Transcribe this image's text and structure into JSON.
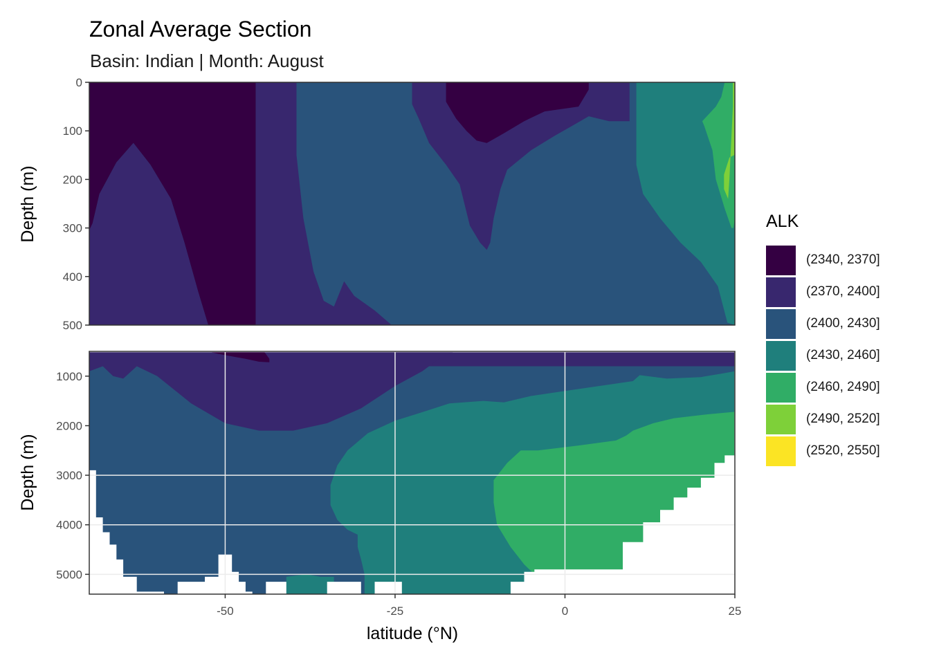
{
  "title": "Zonal Average Section",
  "subtitle": "Basin: Indian | Month: August",
  "chart_data": {
    "type": "filled_contour",
    "title": "Zonal Average Section",
    "subtitle": "Basin: Indian | Month: August",
    "xlabel": "latitude (°N)",
    "ylabel": "Depth (m)",
    "xlim": [
      -70,
      25
    ],
    "x_ticks": [
      -50,
      -25,
      0,
      25
    ],
    "grid": true,
    "legend_position": "right",
    "panels": [
      {
        "name": "upper",
        "ylim": [
          500,
          0
        ],
        "y_ticks": [
          0,
          100,
          200,
          300,
          400,
          500
        ]
      },
      {
        "name": "lower",
        "ylim": [
          5400,
          500
        ],
        "y_ticks": [
          1000,
          2000,
          3000,
          4000,
          5000
        ]
      }
    ],
    "legend": {
      "title": "ALK",
      "entries": [
        {
          "label": "(2340, 2370]",
          "color": "#340042"
        },
        {
          "label": "(2370, 2400]",
          "color": "#38276e"
        },
        {
          "label": "(2400, 2430]",
          "color": "#29537b"
        },
        {
          "label": "(2430, 2460]",
          "color": "#1f7f7c"
        },
        {
          "label": "(2460, 2490]",
          "color": "#30ad66"
        },
        {
          "label": "(2490, 2520]",
          "color": "#7ed039"
        },
        {
          "label": "(2520, 2550]",
          "color": "#fbe424"
        }
      ]
    },
    "bands": {
      "upper": [
        {
          "level": 2,
          "points": [
            [
              -70,
              0
            ],
            [
              25,
              0
            ],
            [
              25,
              500
            ],
            [
              -70,
              500
            ]
          ]
        },
        {
          "level": 0,
          "points": [
            [
              -70,
              0
            ],
            [
              -45.5,
              0
            ],
            [
              -45.5,
              500
            ],
            [
              -52.5,
              500
            ],
            [
              -54,
              430
            ],
            [
              -56,
              330
            ],
            [
              -58,
              240
            ],
            [
              -61,
              170
            ],
            [
              -63.5,
              125
            ],
            [
              -66,
              165
            ],
            [
              -68.5,
              230
            ],
            [
              -69.5,
              290
            ],
            [
              -70,
              305
            ]
          ]
        },
        {
          "level": 1,
          "points": [
            [
              -70,
              305
            ],
            [
              -69.5,
              290
            ],
            [
              -68.5,
              230
            ],
            [
              -66,
              165
            ],
            [
              -63.5,
              125
            ],
            [
              -61,
              170
            ],
            [
              -58,
              240
            ],
            [
              -56,
              330
            ],
            [
              -54,
              430
            ],
            [
              -52.5,
              500
            ],
            [
              -70,
              500
            ]
          ]
        },
        {
          "level": 1,
          "points": [
            [
              -45.5,
              0
            ],
            [
              -39.5,
              0
            ],
            [
              -39.5,
              150
            ],
            [
              -38.5,
              280
            ],
            [
              -37,
              390
            ],
            [
              -35.5,
              450
            ],
            [
              -34,
              462
            ],
            [
              -32.5,
              410
            ],
            [
              -31,
              440
            ],
            [
              -28,
              470
            ],
            [
              -25.5,
              500
            ],
            [
              -45.5,
              500
            ]
          ]
        },
        {
          "level": 1,
          "points": [
            [
              -22.5,
              0
            ],
            [
              9.5,
              0
            ],
            [
              9.5,
              80
            ],
            [
              6.5,
              80
            ],
            [
              3.5,
              70
            ],
            [
              1,
              90
            ],
            [
              -1.5,
              110
            ],
            [
              -5,
              140
            ],
            [
              -8.5,
              180
            ],
            [
              -9.5,
              220
            ],
            [
              -10.5,
              280
            ],
            [
              -11,
              330
            ],
            [
              -11.5,
              345
            ],
            [
              -12.5,
              330
            ],
            [
              -14,
              295
            ],
            [
              -15.5,
              210
            ],
            [
              -17.5,
              170
            ],
            [
              -20,
              125
            ],
            [
              -21.5,
              75
            ],
            [
              -22.5,
              45
            ]
          ]
        },
        {
          "level": 0,
          "points": [
            [
              -17.5,
              0
            ],
            [
              3.5,
              0
            ],
            [
              3.5,
              15
            ],
            [
              2,
              50
            ],
            [
              -3,
              60
            ],
            [
              -6,
              80
            ],
            [
              -9,
              105
            ],
            [
              -11.5,
              125
            ],
            [
              -13,
              120
            ],
            [
              -14.5,
              100
            ],
            [
              -16,
              75
            ],
            [
              -17.5,
              40
            ]
          ]
        },
        {
          "level": 3,
          "points": [
            [
              10.5,
              0
            ],
            [
              25,
              0
            ],
            [
              25,
              500
            ],
            [
              23.9,
              495
            ],
            [
              22.5,
              420
            ],
            [
              20,
              370
            ],
            [
              17,
              330
            ],
            [
              14,
              280
            ],
            [
              11.5,
              230
            ],
            [
              10.5,
              170
            ]
          ]
        },
        {
          "level": 4,
          "points": [
            [
              23.5,
              0
            ],
            [
              25,
              0
            ],
            [
              25,
              280
            ],
            [
              24.8,
              300
            ],
            [
              24.5,
              300
            ],
            [
              23.5,
              260
            ],
            [
              22.2,
              200
            ],
            [
              21.7,
              140
            ],
            [
              20.5,
              90
            ],
            [
              20.2,
              80
            ],
            [
              22.2,
              50
            ],
            [
              23,
              30
            ]
          ]
        },
        {
          "level": 5,
          "points": [
            [
              24.7,
              0
            ],
            [
              25,
              0
            ],
            [
              25,
              150
            ],
            [
              24.9,
              150
            ],
            [
              24.2,
              155
            ],
            [
              23.4,
              190
            ],
            [
              23.4,
              220
            ],
            [
              24.0,
              240
            ],
            [
              24.2,
              200
            ],
            [
              24.6,
              80
            ],
            [
              24.7,
              50
            ]
          ]
        }
      ],
      "lower": [
        {
          "level": 1,
          "points": [
            [
              -70,
              520
            ],
            [
              25,
              520
            ],
            [
              25,
              800
            ],
            [
              -70,
              800
            ]
          ]
        },
        {
          "level": 2,
          "points": [
            [
              -70,
              800
            ],
            [
              25,
              800
            ],
            [
              25,
              5400
            ],
            [
              -70,
              5400
            ]
          ]
        },
        {
          "level": 1,
          "points": [
            [
              -70,
              520
            ],
            [
              -16.5,
              520
            ],
            [
              -18,
              600
            ],
            [
              -21,
              900
            ],
            [
              -25,
              1200
            ],
            [
              -30,
              1650
            ],
            [
              -35,
              1950
            ],
            [
              -40,
              2100
            ],
            [
              -45,
              2100
            ],
            [
              -50,
              1950
            ],
            [
              -55,
              1550
            ],
            [
              -60,
              1000
            ],
            [
              -63,
              800
            ],
            [
              -65,
              1050
            ],
            [
              -66.5,
              1000
            ],
            [
              -68,
              800
            ],
            [
              -70,
              900
            ]
          ]
        },
        {
          "level": 0,
          "points": [
            [
              -52,
              520
            ],
            [
              -44.2,
              520
            ],
            [
              -43.5,
              650
            ],
            [
              -43.5,
              720
            ],
            [
              -45,
              710
            ],
            [
              -47,
              650
            ],
            [
              -49,
              600
            ],
            [
              -51,
              550
            ]
          ]
        },
        {
          "level": 3,
          "points": [
            [
              25,
              900
            ],
            [
              23,
              950
            ],
            [
              20,
              1020
            ],
            [
              15,
              1050
            ],
            [
              11,
              980
            ],
            [
              10,
              1100
            ],
            [
              5,
              1200
            ],
            [
              0,
              1300
            ],
            [
              -5,
              1400
            ],
            [
              -9,
              1530
            ],
            [
              -12,
              1500
            ],
            [
              -17,
              1550
            ],
            [
              -21.5,
              1750
            ],
            [
              -25,
              1900
            ],
            [
              -29,
              2150
            ],
            [
              -32,
              2500
            ],
            [
              -33.5,
              2800
            ],
            [
              -34.5,
              3200
            ],
            [
              -34.5,
              3600
            ],
            [
              -33.5,
              3900
            ],
            [
              -32,
              4100
            ],
            [
              -30.5,
              4200
            ],
            [
              -30.5,
              4450
            ],
            [
              -30,
              4700
            ],
            [
              -29.5,
              5000
            ],
            [
              -29.5,
              5400
            ],
            [
              -5,
              5400
            ],
            [
              -5,
              5200
            ],
            [
              25,
              5200
            ]
          ]
        },
        {
          "level": 4,
          "points": [
            [
              25,
              1720
            ],
            [
              21,
              1770
            ],
            [
              16,
              1850
            ],
            [
              13,
              1950
            ],
            [
              10,
              2100
            ],
            [
              9,
              2200
            ],
            [
              7.5,
              2300
            ],
            [
              2,
              2400
            ],
            [
              -4,
              2500
            ],
            [
              -6.5,
              2500
            ],
            [
              -8.5,
              2750
            ],
            [
              -10.5,
              3100
            ],
            [
              -10.5,
              3550
            ],
            [
              -10,
              4000
            ],
            [
              -8,
              4450
            ],
            [
              -6,
              4800
            ],
            [
              -4.5,
              5000
            ],
            [
              9,
              5000
            ],
            [
              9,
              4450
            ],
            [
              12,
              4450
            ],
            [
              12,
              4050
            ],
            [
              14.5,
              4050
            ],
            [
              14.5,
              3800
            ],
            [
              16.5,
              3800
            ],
            [
              16.5,
              3600
            ],
            [
              18.5,
              3600
            ],
            [
              18.5,
              3350
            ],
            [
              20.5,
              3350
            ],
            [
              20.5,
              3150
            ],
            [
              22.5,
              3150
            ],
            [
              22.5,
              2900
            ],
            [
              24,
              2900
            ],
            [
              24,
              2600
            ],
            [
              25,
              2600
            ]
          ]
        },
        {
          "level": 3,
          "points": [
            [
              -41,
              5050
            ],
            [
              -38,
              5000
            ],
            [
              -36,
              5050
            ],
            [
              -34,
              5050
            ],
            [
              -34,
              5400
            ],
            [
              -41,
              5400
            ]
          ]
        }
      ],
      "seafloor": [
        [
          -70,
          2900
        ],
        [
          -69,
          2900
        ],
        [
          -69,
          3850
        ],
        [
          -68,
          3850
        ],
        [
          -68,
          4150
        ],
        [
          -67,
          4150
        ],
        [
          -67,
          4400
        ],
        [
          -66,
          4400
        ],
        [
          -66,
          4700
        ],
        [
          -65,
          4700
        ],
        [
          -65,
          5050
        ],
        [
          -63,
          5050
        ],
        [
          -63,
          5350
        ],
        [
          -59,
          5350
        ],
        [
          -59,
          5400
        ],
        [
          -57,
          5400
        ],
        [
          -57,
          5150
        ],
        [
          -53,
          5150
        ],
        [
          -53,
          5050
        ],
        [
          -51,
          5050
        ],
        [
          -51,
          4600
        ],
        [
          -49,
          4600
        ],
        [
          -49,
          4950
        ],
        [
          -48,
          4950
        ],
        [
          -48,
          5150
        ],
        [
          -47,
          5150
        ],
        [
          -47,
          5350
        ],
        [
          -46,
          5350
        ],
        [
          -46,
          5400
        ],
        [
          -44,
          5400
        ],
        [
          -44,
          5150
        ],
        [
          -41,
          5150
        ],
        [
          -41,
          5400
        ],
        [
          -35,
          5400
        ],
        [
          -35,
          5150
        ],
        [
          -30,
          5150
        ],
        [
          -30,
          5400
        ],
        [
          -28,
          5400
        ],
        [
          -28,
          5150
        ],
        [
          -24,
          5150
        ],
        [
          -24,
          5400
        ],
        [
          -8,
          5400
        ],
        [
          -8,
          5150
        ],
        [
          -6,
          5150
        ],
        [
          -6,
          4950
        ],
        [
          -4.5,
          4950
        ],
        [
          -4.5,
          4900
        ],
        [
          8.5,
          4900
        ],
        [
          8.5,
          4350
        ],
        [
          11.5,
          4350
        ],
        [
          11.5,
          3950
        ],
        [
          14,
          3950
        ],
        [
          14,
          3700
        ],
        [
          16,
          3700
        ],
        [
          16,
          3450
        ],
        [
          18,
          3450
        ],
        [
          18,
          3250
        ],
        [
          20,
          3250
        ],
        [
          20,
          3050
        ],
        [
          22,
          3050
        ],
        [
          22,
          2750
        ],
        [
          23.5,
          2750
        ],
        [
          23.5,
          2600
        ],
        [
          25,
          2600
        ],
        [
          25,
          5400
        ],
        [
          -70,
          5400
        ]
      ]
    }
  }
}
